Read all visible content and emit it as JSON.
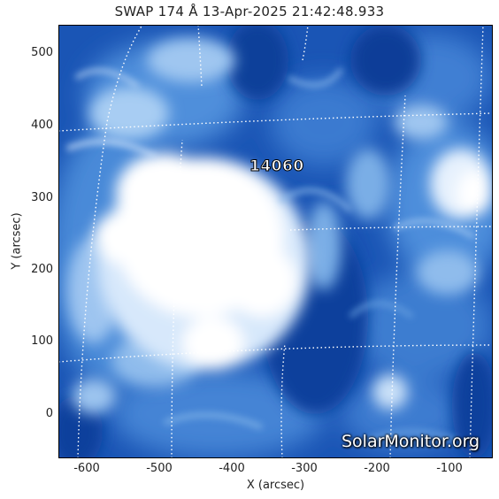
{
  "title": "SWAP 174 Å 13-Apr-2025 21:42:48.933",
  "x_axis": {
    "label": "X (arcsec)",
    "ticks": [
      "-600",
      "-500",
      "-400",
      "-300",
      "-200",
      "-100"
    ]
  },
  "y_axis": {
    "label": "Y (arcsec)",
    "ticks": [
      "500",
      "400",
      "300",
      "200",
      "100",
      "0"
    ]
  },
  "active_region": "14060",
  "watermark": "SolarMonitor.org",
  "colors": {
    "background": "#1650b0",
    "bright": "#ffffff",
    "mid": "#5d9be0",
    "grid": "#ffffff"
  }
}
